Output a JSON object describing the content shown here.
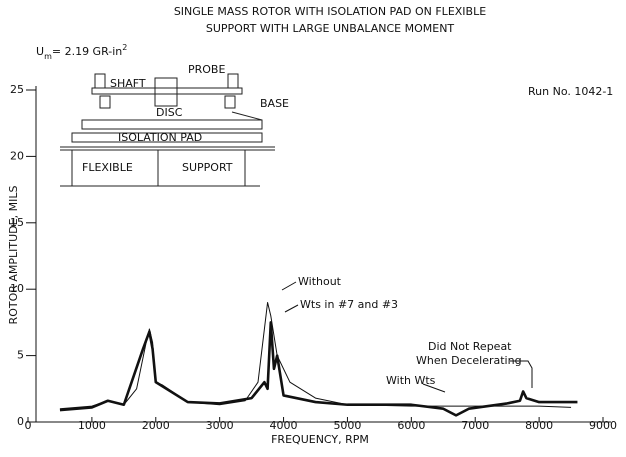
{
  "chart_data": {
    "type": "line",
    "title": [
      "SINGLE MASS ROTOR WITH ISOLATION PAD ON FLEXIBLE",
      "SUPPORT WITH LARGE UNBALANCE MOMENT"
    ],
    "x_label": "FREQUENCY, RPM",
    "y_label": "ROTOR AMPLITUDE, MILS",
    "xlim": [
      0,
      9000
    ],
    "xticks": [
      0,
      1000,
      2000,
      3000,
      4000,
      5000,
      6000,
      7000,
      8000,
      9000
    ],
    "ylim": [
      0,
      25
    ],
    "yticks": [
      0,
      5,
      10,
      15,
      20,
      25
    ],
    "grid": false,
    "series": [
      {
        "name": "Without",
        "color": "#111111",
        "x": [
          500,
          1000,
          1250,
          1500,
          1700,
          1850,
          1900,
          1950,
          2000,
          2100,
          2500,
          3000,
          3400,
          3600,
          3700,
          3750,
          3800,
          3900,
          4100,
          4500,
          5000,
          6000,
          7000,
          8000,
          8500
        ],
        "values": [
          1.0,
          1.2,
          1.6,
          1.3,
          2.5,
          6.0,
          7.0,
          6.0,
          3.0,
          2.8,
          1.5,
          1.3,
          1.6,
          3.0,
          7.0,
          9.0,
          8.0,
          5.0,
          3.0,
          1.8,
          1.3,
          1.2,
          1.2,
          1.2,
          1.1
        ]
      },
      {
        "name": "With Wts",
        "color": "#111111",
        "x": [
          500,
          1000,
          1250,
          1500,
          1800,
          1900,
          1950,
          2000,
          2500,
          3000,
          3500,
          3700,
          3750,
          3800,
          3850,
          3900,
          4000,
          4500,
          5000,
          6000,
          6500,
          6700,
          6900,
          7500,
          7700,
          7750,
          7800,
          8000,
          8600
        ],
        "values": [
          0.9,
          1.1,
          1.6,
          1.3,
          5.5,
          6.8,
          5.5,
          3.0,
          1.5,
          1.4,
          1.8,
          3.0,
          2.5,
          7.5,
          4.0,
          5.0,
          2.0,
          1.5,
          1.3,
          1.3,
          1.0,
          0.5,
          1.0,
          1.4,
          1.6,
          2.3,
          1.8,
          1.5,
          1.5
        ]
      }
    ],
    "annotations": {
      "unbalance": {
        "base": "U",
        "sub": "m",
        "text": "= 2.19 GR-in",
        "sup": "2"
      },
      "run": "Run No. 1042-1",
      "wts": "Wts in #7 and #3",
      "decel": [
        "Did Not Repeat",
        "When Decelerating"
      ]
    },
    "diagram": {
      "shaft": "SHAFT",
      "probe": "PROBE",
      "disc": "DISC",
      "base": "BASE",
      "pad": "ISOLATION PAD",
      "flexible": "FLEXIBLE",
      "support": "SUPPORT"
    }
  }
}
